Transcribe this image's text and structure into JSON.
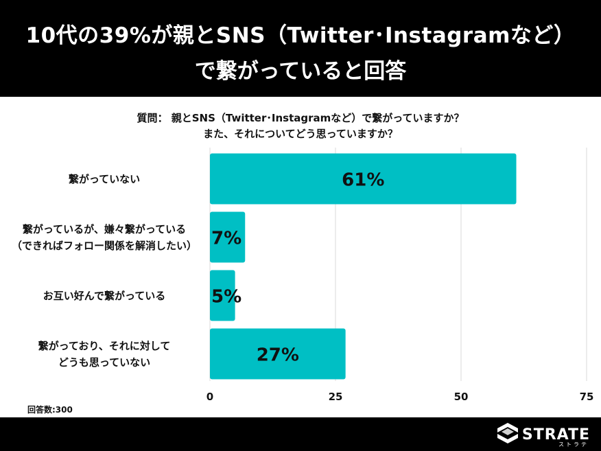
{
  "header": {
    "line1": "10代の39%が親とSNS（Twitter･Instagramなど）",
    "line2": "で繋がっていると回答"
  },
  "question": {
    "line1": "質問： 親とSNS（Twitter･Instagramなど）で繋がっていますか？",
    "line2": "また、それについてどう思っていますか？"
  },
  "footnote": "回答数:300",
  "logo": {
    "text": "STRATE",
    "sub": "ストラテ"
  },
  "colors": {
    "bar": "#00BFC4",
    "grid": "#d9d9d9",
    "background": "#ffffff",
    "header": "#000000"
  },
  "chart_data": {
    "type": "bar",
    "orientation": "horizontal",
    "categories": [
      [
        "繋がっていない"
      ],
      [
        "繋がっているが、嫌々繋がっている",
        "（できればフォロー関係を解消したい）"
      ],
      [
        "お互い好んで繋がっている"
      ],
      [
        "繋がっており、それに対して",
        "どうも思っていない"
      ]
    ],
    "values": [
      61,
      7,
      5,
      27
    ],
    "data_labels": [
      "61%",
      "7%",
      "5%",
      "27%"
    ],
    "xlim": [
      0,
      75
    ],
    "xticks": [
      0,
      25,
      50,
      75
    ],
    "grid": true
  }
}
